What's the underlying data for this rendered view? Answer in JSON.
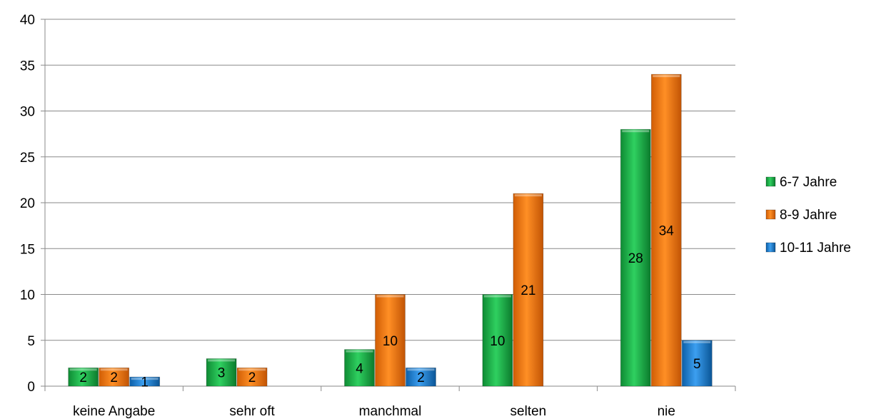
{
  "chart_data": {
    "type": "bar",
    "categories": [
      "keine Angabe",
      "sehr oft",
      "manchmal",
      "selten",
      "nie"
    ],
    "series": [
      {
        "name": "6-7 Jahre",
        "values": [
          2,
          3,
          4,
          10,
          28
        ],
        "color": "#1fb14a"
      },
      {
        "name": "8-9 Jahre",
        "values": [
          2,
          2,
          10,
          21,
          34
        ],
        "color": "#f07a10"
      },
      {
        "name": "10-11 Jahre",
        "values": [
          1,
          null,
          2,
          null,
          5
        ],
        "color": "#1e7fd0"
      }
    ],
    "ylim": [
      0,
      40
    ],
    "yticks": [
      0,
      5,
      10,
      15,
      20,
      25,
      30,
      35,
      40
    ],
    "grid": true,
    "legend_position": "right",
    "title": "",
    "xlabel": "",
    "ylabel": ""
  }
}
